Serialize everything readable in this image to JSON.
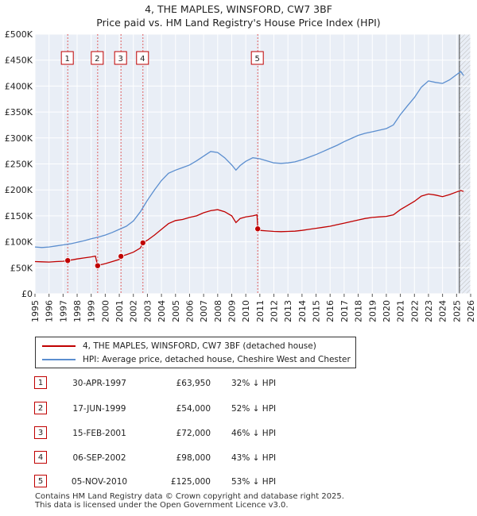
{
  "title": {
    "line1": "4, THE MAPLES, WINSFORD, CW7 3BF",
    "line2": "Price paid vs. HM Land Registry's House Price Index (HPI)"
  },
  "chart_data": {
    "type": "line",
    "ylabel_ticks": [
      "£0",
      "£50K",
      "£100K",
      "£150K",
      "£200K",
      "£250K",
      "£300K",
      "£350K",
      "£400K",
      "£450K",
      "£500K"
    ],
    "y_ticks": [
      0,
      50000,
      100000,
      150000,
      200000,
      250000,
      300000,
      350000,
      400000,
      450000,
      500000
    ],
    "ylim": [
      0,
      500000
    ],
    "xlim": [
      1995,
      2026
    ],
    "x_ticks": [
      "1995",
      "1996",
      "1997",
      "1998",
      "1999",
      "2000",
      "2001",
      "2002",
      "2003",
      "2004",
      "2005",
      "2006",
      "2007",
      "2008",
      "2009",
      "2010",
      "2011",
      "2012",
      "2013",
      "2014",
      "2015",
      "2016",
      "2017",
      "2018",
      "2019",
      "2020",
      "2021",
      "2022",
      "2023",
      "2024",
      "2025",
      "2026"
    ],
    "grid": true,
    "hatched_region_from": 2025.2,
    "series": [
      {
        "name": "4, THE MAPLES, WINSFORD, CW7 3BF (detached house)",
        "color": "#c00000",
        "points": [
          [
            1995.0,
            62000
          ],
          [
            1995.5,
            61500
          ],
          [
            1996.0,
            61000
          ],
          [
            1996.5,
            62000
          ],
          [
            1997.0,
            62500
          ],
          [
            1997.33,
            63950
          ],
          [
            1997.7,
            65500
          ],
          [
            1998.0,
            67000
          ],
          [
            1998.5,
            69000
          ],
          [
            1999.0,
            71000
          ],
          [
            1999.3,
            72500
          ],
          [
            1999.46,
            54000
          ],
          [
            1999.7,
            56000
          ],
          [
            2000.0,
            58000
          ],
          [
            2000.5,
            62000
          ],
          [
            2001.0,
            66000
          ],
          [
            2001.12,
            72000
          ],
          [
            2001.5,
            75000
          ],
          [
            2002.0,
            80000
          ],
          [
            2002.5,
            88000
          ],
          [
            2002.68,
            98000
          ],
          [
            2003.0,
            103000
          ],
          [
            2003.5,
            113000
          ],
          [
            2004.0,
            124000
          ],
          [
            2004.5,
            135000
          ],
          [
            2005.0,
            141000
          ],
          [
            2005.5,
            143000
          ],
          [
            2006.0,
            147000
          ],
          [
            2006.5,
            150000
          ],
          [
            2007.0,
            156000
          ],
          [
            2007.5,
            160000
          ],
          [
            2008.0,
            162000
          ],
          [
            2008.5,
            158000
          ],
          [
            2009.0,
            150000
          ],
          [
            2009.3,
            137000
          ],
          [
            2009.6,
            145000
          ],
          [
            2010.0,
            148000
          ],
          [
            2010.5,
            150000
          ],
          [
            2010.8,
            152000
          ],
          [
            2010.85,
            125000
          ],
          [
            2011.0,
            122000
          ],
          [
            2011.5,
            121000
          ],
          [
            2012.0,
            120000
          ],
          [
            2012.5,
            119500
          ],
          [
            2013.0,
            120000
          ],
          [
            2013.5,
            120500
          ],
          [
            2014.0,
            122000
          ],
          [
            2014.5,
            124000
          ],
          [
            2015.0,
            126000
          ],
          [
            2015.5,
            128000
          ],
          [
            2016.0,
            130000
          ],
          [
            2016.5,
            133000
          ],
          [
            2017.0,
            136000
          ],
          [
            2017.5,
            139000
          ],
          [
            2018.0,
            142000
          ],
          [
            2018.5,
            145000
          ],
          [
            2019.0,
            147000
          ],
          [
            2019.5,
            148000
          ],
          [
            2020.0,
            149000
          ],
          [
            2020.5,
            152000
          ],
          [
            2021.0,
            162000
          ],
          [
            2021.5,
            170000
          ],
          [
            2022.0,
            178000
          ],
          [
            2022.5,
            188000
          ],
          [
            2023.0,
            192000
          ],
          [
            2023.5,
            190000
          ],
          [
            2024.0,
            187000
          ],
          [
            2024.5,
            191000
          ],
          [
            2025.0,
            196000
          ],
          [
            2025.3,
            199000
          ],
          [
            2025.5,
            197000
          ]
        ]
      },
      {
        "name": "HPI: Average price, detached house, Cheshire West and Chester",
        "color": "#5b8ecf",
        "points": [
          [
            1995.0,
            90000
          ],
          [
            1995.5,
            89000
          ],
          [
            1996.0,
            90000
          ],
          [
            1996.5,
            92000
          ],
          [
            1997.0,
            94000
          ],
          [
            1997.5,
            96000
          ],
          [
            1998.0,
            99000
          ],
          [
            1998.5,
            102000
          ],
          [
            1999.0,
            106000
          ],
          [
            1999.5,
            109000
          ],
          [
            2000.0,
            113000
          ],
          [
            2000.5,
            118000
          ],
          [
            2001.0,
            124000
          ],
          [
            2001.5,
            130000
          ],
          [
            2002.0,
            140000
          ],
          [
            2002.5,
            158000
          ],
          [
            2003.0,
            180000
          ],
          [
            2003.5,
            200000
          ],
          [
            2004.0,
            218000
          ],
          [
            2004.5,
            232000
          ],
          [
            2005.0,
            238000
          ],
          [
            2005.5,
            243000
          ],
          [
            2006.0,
            248000
          ],
          [
            2006.5,
            256000
          ],
          [
            2007.0,
            265000
          ],
          [
            2007.5,
            274000
          ],
          [
            2008.0,
            272000
          ],
          [
            2008.5,
            262000
          ],
          [
            2009.0,
            248000
          ],
          [
            2009.3,
            238000
          ],
          [
            2009.6,
            247000
          ],
          [
            2010.0,
            255000
          ],
          [
            2010.5,
            262000
          ],
          [
            2011.0,
            260000
          ],
          [
            2011.5,
            256000
          ],
          [
            2012.0,
            252000
          ],
          [
            2012.5,
            251000
          ],
          [
            2013.0,
            252000
          ],
          [
            2013.5,
            254000
          ],
          [
            2014.0,
            258000
          ],
          [
            2014.5,
            263000
          ],
          [
            2015.0,
            268000
          ],
          [
            2015.5,
            274000
          ],
          [
            2016.0,
            280000
          ],
          [
            2016.5,
            286000
          ],
          [
            2017.0,
            293000
          ],
          [
            2017.5,
            299000
          ],
          [
            2018.0,
            305000
          ],
          [
            2018.5,
            309000
          ],
          [
            2019.0,
            312000
          ],
          [
            2019.5,
            315000
          ],
          [
            2020.0,
            318000
          ],
          [
            2020.5,
            325000
          ],
          [
            2021.0,
            345000
          ],
          [
            2021.5,
            362000
          ],
          [
            2022.0,
            378000
          ],
          [
            2022.5,
            398000
          ],
          [
            2023.0,
            410000
          ],
          [
            2023.5,
            407000
          ],
          [
            2024.0,
            405000
          ],
          [
            2024.5,
            412000
          ],
          [
            2025.0,
            422000
          ],
          [
            2025.3,
            428000
          ],
          [
            2025.5,
            420000
          ]
        ]
      }
    ],
    "sales": [
      {
        "label": "1",
        "x": 1997.33,
        "y": 63950
      },
      {
        "label": "2",
        "x": 1999.46,
        "y": 54000
      },
      {
        "label": "3",
        "x": 2001.12,
        "y": 72000
      },
      {
        "label": "4",
        "x": 2002.68,
        "y": 98000
      },
      {
        "label": "5",
        "x": 2010.85,
        "y": 125000
      }
    ]
  },
  "legend": {
    "property": "4, THE MAPLES, WINSFORD, CW7 3BF (detached house)",
    "hpi": "HPI: Average price, detached house, Cheshire West and Chester",
    "property_color": "#c00000",
    "hpi_color": "#5b8ecf"
  },
  "transactions": [
    {
      "num": "1",
      "date": "30-APR-1997",
      "price": "£63,950",
      "hpi": "32% ↓ HPI"
    },
    {
      "num": "2",
      "date": "17-JUN-1999",
      "price": "£54,000",
      "hpi": "52% ↓ HPI"
    },
    {
      "num": "3",
      "date": "15-FEB-2001",
      "price": "£72,000",
      "hpi": "46% ↓ HPI"
    },
    {
      "num": "4",
      "date": "06-SEP-2002",
      "price": "£98,000",
      "hpi": "43% ↓ HPI"
    },
    {
      "num": "5",
      "date": "05-NOV-2010",
      "price": "£125,000",
      "hpi": "53% ↓ HPI"
    }
  ],
  "footer": {
    "line1": "Contains HM Land Registry data © Crown copyright and database right 2025.",
    "line2": "This data is licensed under the Open Government Licence v3.0."
  }
}
